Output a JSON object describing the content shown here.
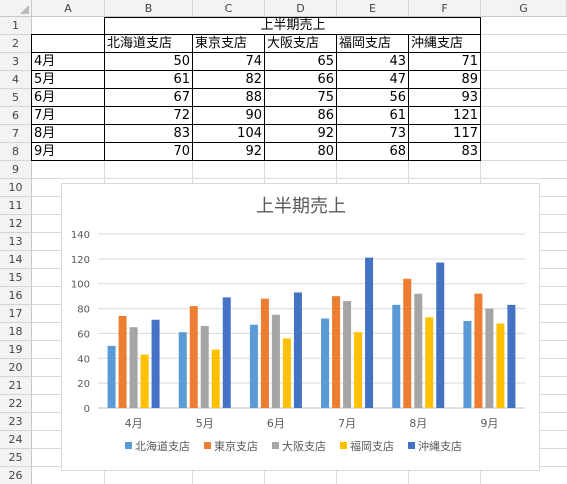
{
  "columns": [
    "A",
    "B",
    "C",
    "D",
    "E",
    "F",
    "G"
  ],
  "rows": [
    "1",
    "2",
    "3",
    "4",
    "5",
    "6",
    "7",
    "8",
    "9",
    "10",
    "11",
    "12",
    "13",
    "14",
    "15",
    "16",
    "17",
    "18",
    "19",
    "20",
    "21",
    "22",
    "23",
    "24",
    "25",
    "26"
  ],
  "table": {
    "title": "上半期売上",
    "headers": [
      "北海道支店",
      "東京支店",
      "大阪支店",
      "福岡支店",
      "沖縄支店"
    ],
    "data_rows": [
      {
        "month": "4月",
        "values": [
          "50",
          "74",
          "65",
          "43",
          "71"
        ]
      },
      {
        "month": "5月",
        "values": [
          "61",
          "82",
          "66",
          "47",
          "89"
        ]
      },
      {
        "month": "6月",
        "values": [
          "67",
          "88",
          "75",
          "56",
          "93"
        ]
      },
      {
        "month": "7月",
        "values": [
          "72",
          "90",
          "86",
          "61",
          "121"
        ]
      },
      {
        "month": "8月",
        "values": [
          "83",
          "104",
          "92",
          "73",
          "117"
        ]
      },
      {
        "month": "9月",
        "values": [
          "70",
          "92",
          "80",
          "68",
          "83"
        ]
      }
    ]
  },
  "chart_data": {
    "type": "bar",
    "title": "上半期売上",
    "categories": [
      "4月",
      "5月",
      "6月",
      "7月",
      "8月",
      "9月"
    ],
    "series": [
      {
        "name": "北海道支店",
        "color": "#5b9bd5",
        "values": [
          50,
          61,
          67,
          72,
          83,
          70
        ]
      },
      {
        "name": "東京支店",
        "color": "#ed7d31",
        "values": [
          74,
          82,
          88,
          90,
          104,
          92
        ]
      },
      {
        "name": "大阪支店",
        "color": "#a5a5a5",
        "values": [
          65,
          66,
          75,
          86,
          92,
          80
        ]
      },
      {
        "name": "福岡支店",
        "color": "#ffc000",
        "values": [
          43,
          47,
          56,
          61,
          73,
          68
        ]
      },
      {
        "name": "沖縄支店",
        "color": "#4472c4",
        "values": [
          71,
          89,
          93,
          121,
          117,
          83
        ]
      }
    ],
    "ylim": [
      0,
      140
    ],
    "yticks": [
      0,
      20,
      40,
      60,
      80,
      100,
      120,
      140
    ],
    "grid": true,
    "legend": "bottom"
  }
}
